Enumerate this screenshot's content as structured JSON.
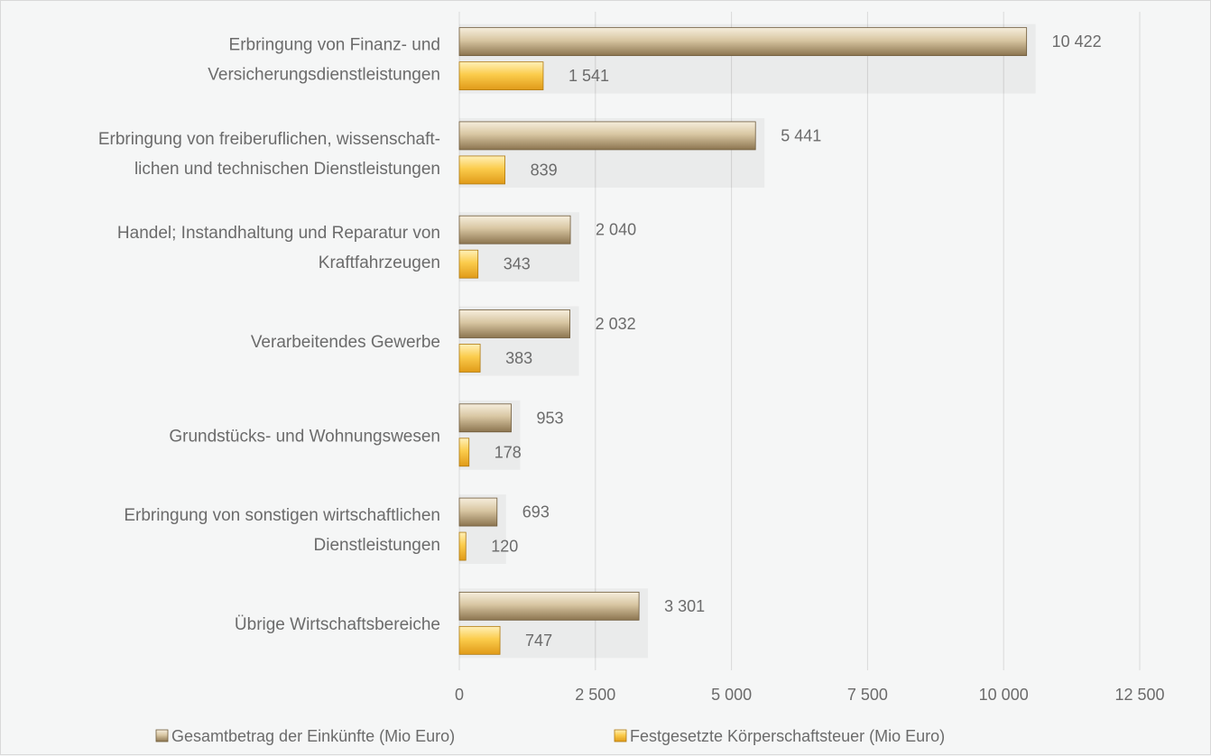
{
  "chart_data": {
    "type": "bar",
    "orientation": "horizontal",
    "title": "",
    "xlabel": "",
    "ylabel": "",
    "xlim": [
      0,
      12500
    ],
    "xticks": [
      0,
      2500,
      5000,
      7500,
      10000,
      12500
    ],
    "xtick_labels": [
      "0",
      "2 500",
      "5 000",
      "7 500",
      "10 000",
      "12 500"
    ],
    "grid": "vertical",
    "legend_position": "bottom",
    "categories": [
      [
        "Erbringung von Finanz- und",
        "Versicherungsdienstleistungen"
      ],
      [
        "Erbringung von freiberuflichen, wissenschaft-",
        "lichen und technischen Dienstleistungen"
      ],
      [
        "Handel; Instandhaltung und Reparatur von",
        "Kraftfahrzeugen"
      ],
      [
        "Verarbeitendes Gewerbe"
      ],
      [
        "Grundstücks- und Wohnungswesen"
      ],
      [
        "Erbringung von sonstigen wirtschaftlichen",
        "Dienstleistungen"
      ],
      [
        "Übrige Wirtschaftsbereiche"
      ]
    ],
    "series": [
      {
        "name": "Gesamtbetrag der Einkünfte (Mio Euro)",
        "color": "#c9b590",
        "values": [
          10422,
          5441,
          2040,
          2032,
          953,
          693,
          3301
        ],
        "labels": [
          "10 422",
          "5 441",
          "2 040",
          "2 032",
          "953",
          "693",
          "3 301"
        ]
      },
      {
        "name": "Festgesetzte Körperschaftsteuer (Mio Euro)",
        "color": "#f7c33e",
        "values": [
          1541,
          839,
          343,
          383,
          178,
          120,
          747
        ],
        "labels": [
          "1 541",
          "839",
          "343",
          "383",
          "178",
          "120",
          "747"
        ]
      }
    ]
  }
}
